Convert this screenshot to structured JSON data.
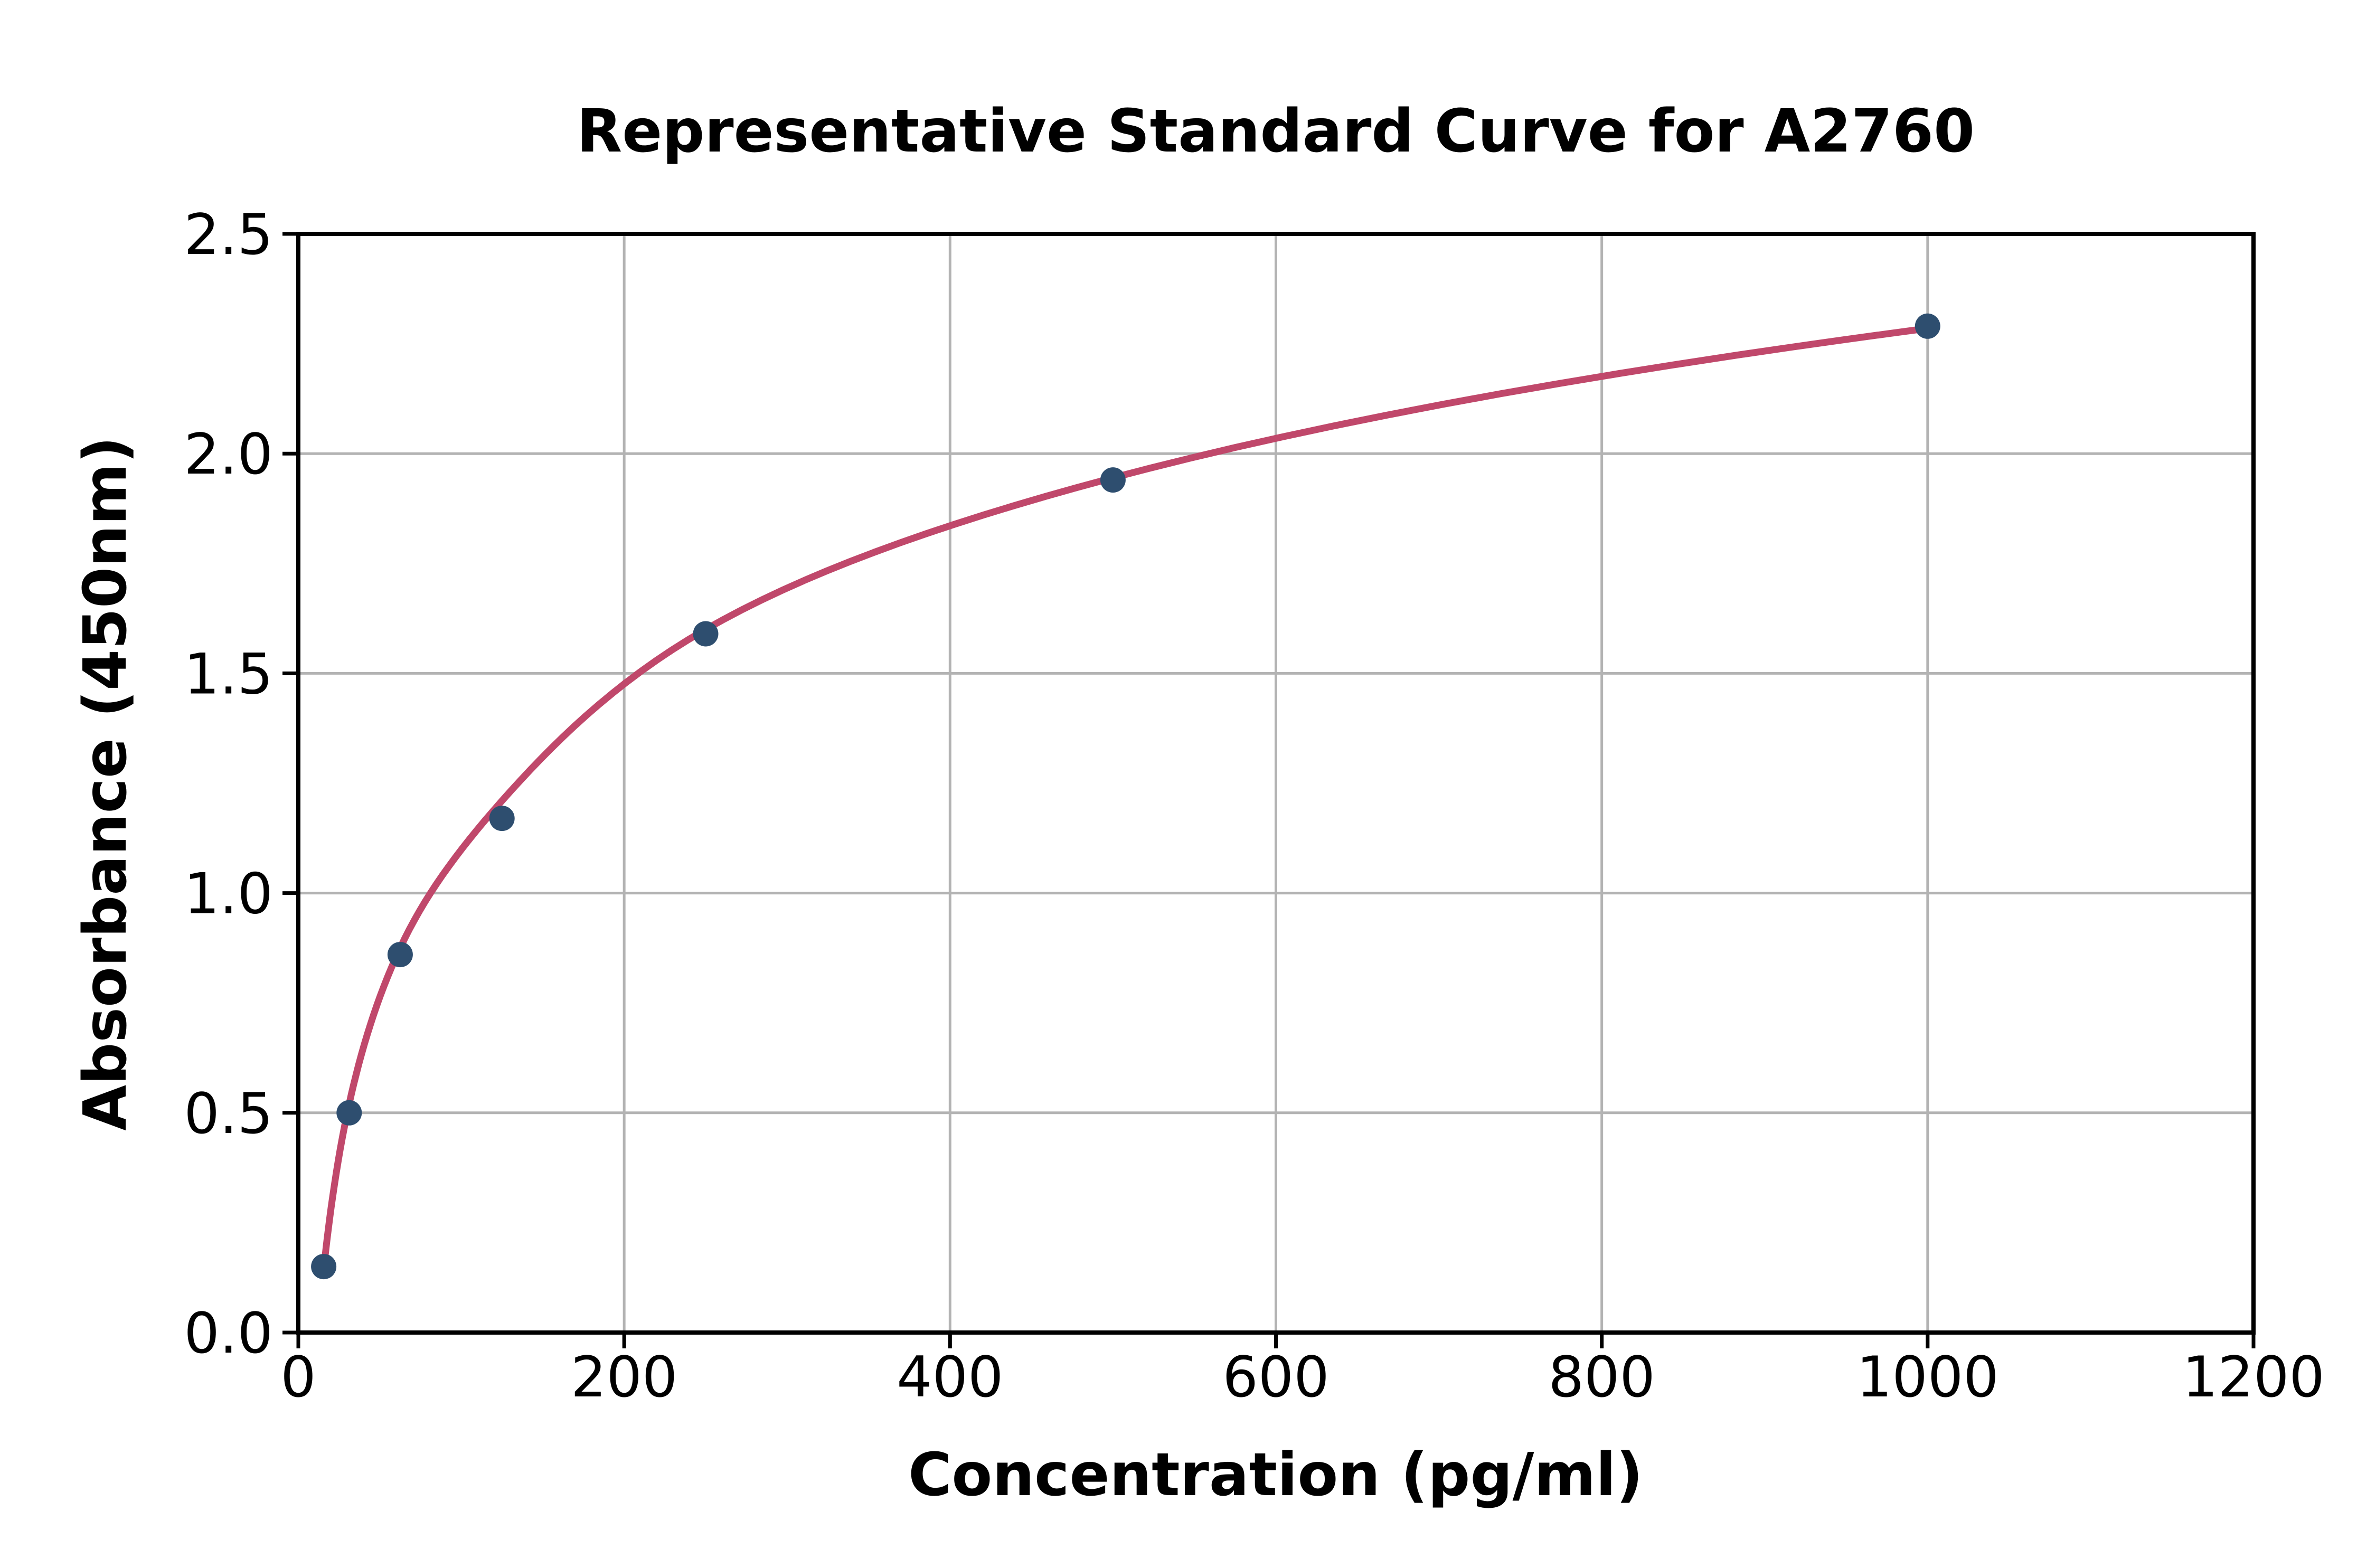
{
  "chart_data": {
    "type": "scatter",
    "title": "Representative Standard Curve for A2760",
    "xlabel": "Concentration (pg/ml)",
    "ylabel": "Absorbance (450nm)",
    "xlim": [
      0,
      1200
    ],
    "ylim": [
      0,
      2.5
    ],
    "x_ticks": [
      0,
      200,
      400,
      600,
      800,
      1000,
      1200
    ],
    "x_tick_labels": [
      "0",
      "200",
      "400",
      "600",
      "800",
      "1000",
      "1200"
    ],
    "y_ticks": [
      0.0,
      0.5,
      1.0,
      1.5,
      2.0,
      2.5
    ],
    "y_tick_labels": [
      "0.0",
      "0.5",
      "1.0",
      "1.5",
      "2.0",
      "2.5"
    ],
    "grid": true,
    "legend": "none",
    "series": [
      {
        "name": "standard-points",
        "x": [
          15.6,
          31.2,
          62.5,
          125,
          250,
          500,
          1000
        ],
        "y": [
          0.15,
          0.5,
          0.86,
          1.17,
          1.59,
          1.94,
          2.29
        ]
      }
    ],
    "fit_curve": {
      "name": "4pl-fit-line",
      "x": [
        15.6,
        31.2,
        62.5,
        125,
        250,
        500,
        1000
      ],
      "y": [
        0.145,
        0.52,
        0.875,
        1.21,
        1.6,
        1.945,
        2.285
      ]
    },
    "colors": {
      "point": "#2e4e6f",
      "line": "#c0486b",
      "grid": "#b3b3b3",
      "spine": "#000000",
      "text": "#000000",
      "background": "#ffffff"
    }
  }
}
